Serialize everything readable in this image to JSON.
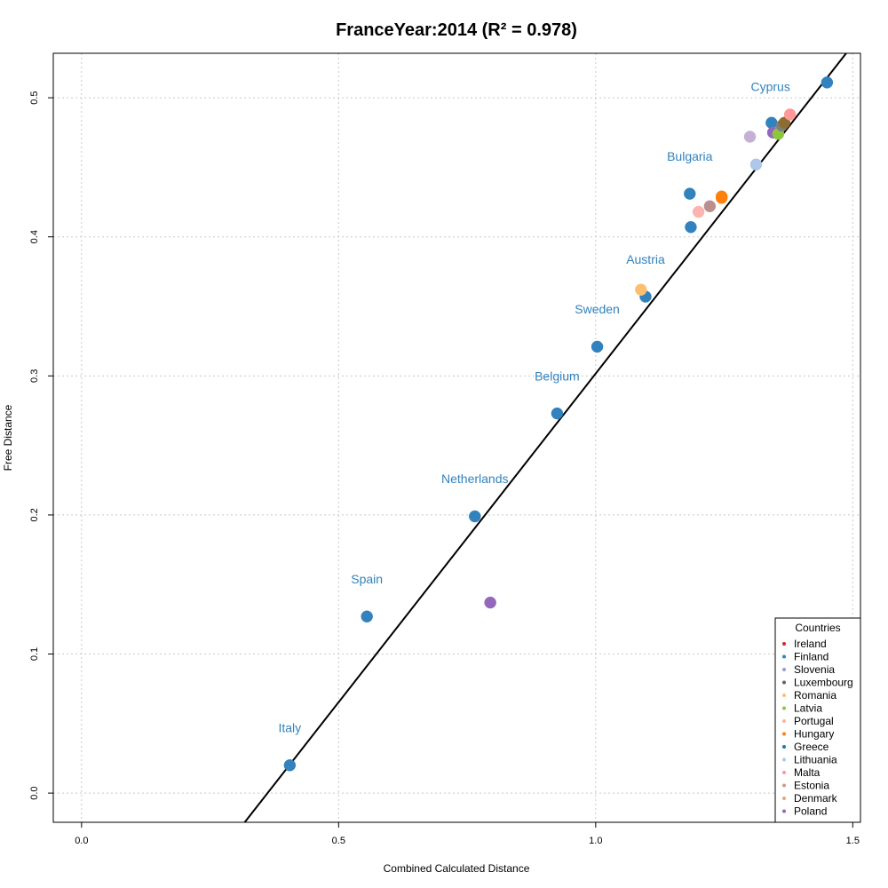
{
  "chart_data": {
    "type": "scatter",
    "title": "FranceYear:2014 (R² = 0.978)",
    "xlabel": "Combined Calculated Distance",
    "ylabel": "Free Distance",
    "xlim": [
      -0.055,
      1.515
    ],
    "ylim": [
      -0.021,
      0.532
    ],
    "xticks": [
      0.0,
      0.5,
      1.0,
      1.5
    ],
    "xtick_labels": [
      "0.0",
      "0.5",
      "1.0",
      "1.5"
    ],
    "yticks": [
      0.0,
      0.1,
      0.2,
      0.3,
      0.4,
      0.5
    ],
    "ytick_labels": [
      "0.0",
      "0.1",
      "0.2",
      "0.3",
      "0.4",
      "0.5"
    ],
    "grid": true,
    "fit_line": {
      "slope": 0.4727,
      "intercept": -0.171
    },
    "points": [
      {
        "x": 0.405,
        "y": 0.02,
        "color": "#3182bd"
      },
      {
        "x": 0.555,
        "y": 0.127,
        "color": "#3182bd"
      },
      {
        "x": 0.765,
        "y": 0.199,
        "color": "#3182bd"
      },
      {
        "x": 0.795,
        "y": 0.137,
        "color": "#9467bd"
      },
      {
        "x": 0.925,
        "y": 0.273,
        "color": "#3182bd"
      },
      {
        "x": 1.003,
        "y": 0.321,
        "color": "#3182bd"
      },
      {
        "x": 1.097,
        "y": 0.357,
        "color": "#3182bd"
      },
      {
        "x": 1.088,
        "y": 0.362,
        "color": "#fdbf6f"
      },
      {
        "x": 1.183,
        "y": 0.431,
        "color": "#3182bd"
      },
      {
        "x": 1.185,
        "y": 0.407,
        "color": "#3182bd"
      },
      {
        "x": 1.2,
        "y": 0.418,
        "color": "#fbb4ae"
      },
      {
        "x": 1.222,
        "y": 0.422,
        "color": "#bc8f8f"
      },
      {
        "x": 1.245,
        "y": 0.429,
        "color": "#fd7f0e"
      },
      {
        "x": 1.245,
        "y": 0.428,
        "color": "#fd7f0e"
      },
      {
        "x": 1.3,
        "y": 0.472,
        "color": "#c5b0d5"
      },
      {
        "x": 1.312,
        "y": 0.452,
        "color": "#aec7e8"
      },
      {
        "x": 1.342,
        "y": 0.482,
        "color": "#3182bd"
      },
      {
        "x": 1.345,
        "y": 0.475,
        "color": "#9467bd"
      },
      {
        "x": 1.355,
        "y": 0.474,
        "color": "#8cc63f"
      },
      {
        "x": 1.362,
        "y": 0.48,
        "color": "#7f7f7f"
      },
      {
        "x": 1.367,
        "y": 0.482,
        "color": "#8c6d31"
      },
      {
        "x": 1.378,
        "y": 0.488,
        "color": "#ff9896"
      },
      {
        "x": 1.45,
        "y": 0.511,
        "color": "#3182bd"
      }
    ],
    "annotations": [
      {
        "text": "Italy",
        "x": 0.405,
        "y": 0.047
      },
      {
        "text": "Spain",
        "x": 0.555,
        "y": 0.154
      },
      {
        "text": "Netherlands",
        "x": 0.765,
        "y": 0.226
      },
      {
        "text": "Belgium",
        "x": 0.925,
        "y": 0.3
      },
      {
        "text": "Sweden",
        "x": 1.003,
        "y": 0.348
      },
      {
        "text": "Austria",
        "x": 1.097,
        "y": 0.384
      },
      {
        "text": "Bulgaria",
        "x": 1.183,
        "y": 0.458
      },
      {
        "text": "Cyprus",
        "x": 1.34,
        "y": 0.508
      }
    ],
    "annotation_color": "#3182bd",
    "legend": {
      "title": "Countries",
      "position": "bottom-right",
      "entries": [
        {
          "label": "Ireland",
          "color": "#d62728"
        },
        {
          "label": "Finland",
          "color": "#3182bd"
        },
        {
          "label": "Slovenia",
          "color": "#9e9ac8"
        },
        {
          "label": "Luxembourg",
          "color": "#636363"
        },
        {
          "label": "Romania",
          "color": "#fdbf6f"
        },
        {
          "label": "Latvia",
          "color": "#8cc63f"
        },
        {
          "label": "Portugal",
          "color": "#fbb4ae"
        },
        {
          "label": "Hungary",
          "color": "#fd7f0e"
        },
        {
          "label": "Greece",
          "color": "#1f77b4"
        },
        {
          "label": "Lithuania",
          "color": "#aec7e8"
        },
        {
          "label": "Malta",
          "color": "#ff9896"
        },
        {
          "label": "Estonia",
          "color": "#c49c94"
        },
        {
          "label": "Denmark",
          "color": "#e6a57e"
        },
        {
          "label": "Poland",
          "color": "#9467bd"
        }
      ]
    }
  }
}
